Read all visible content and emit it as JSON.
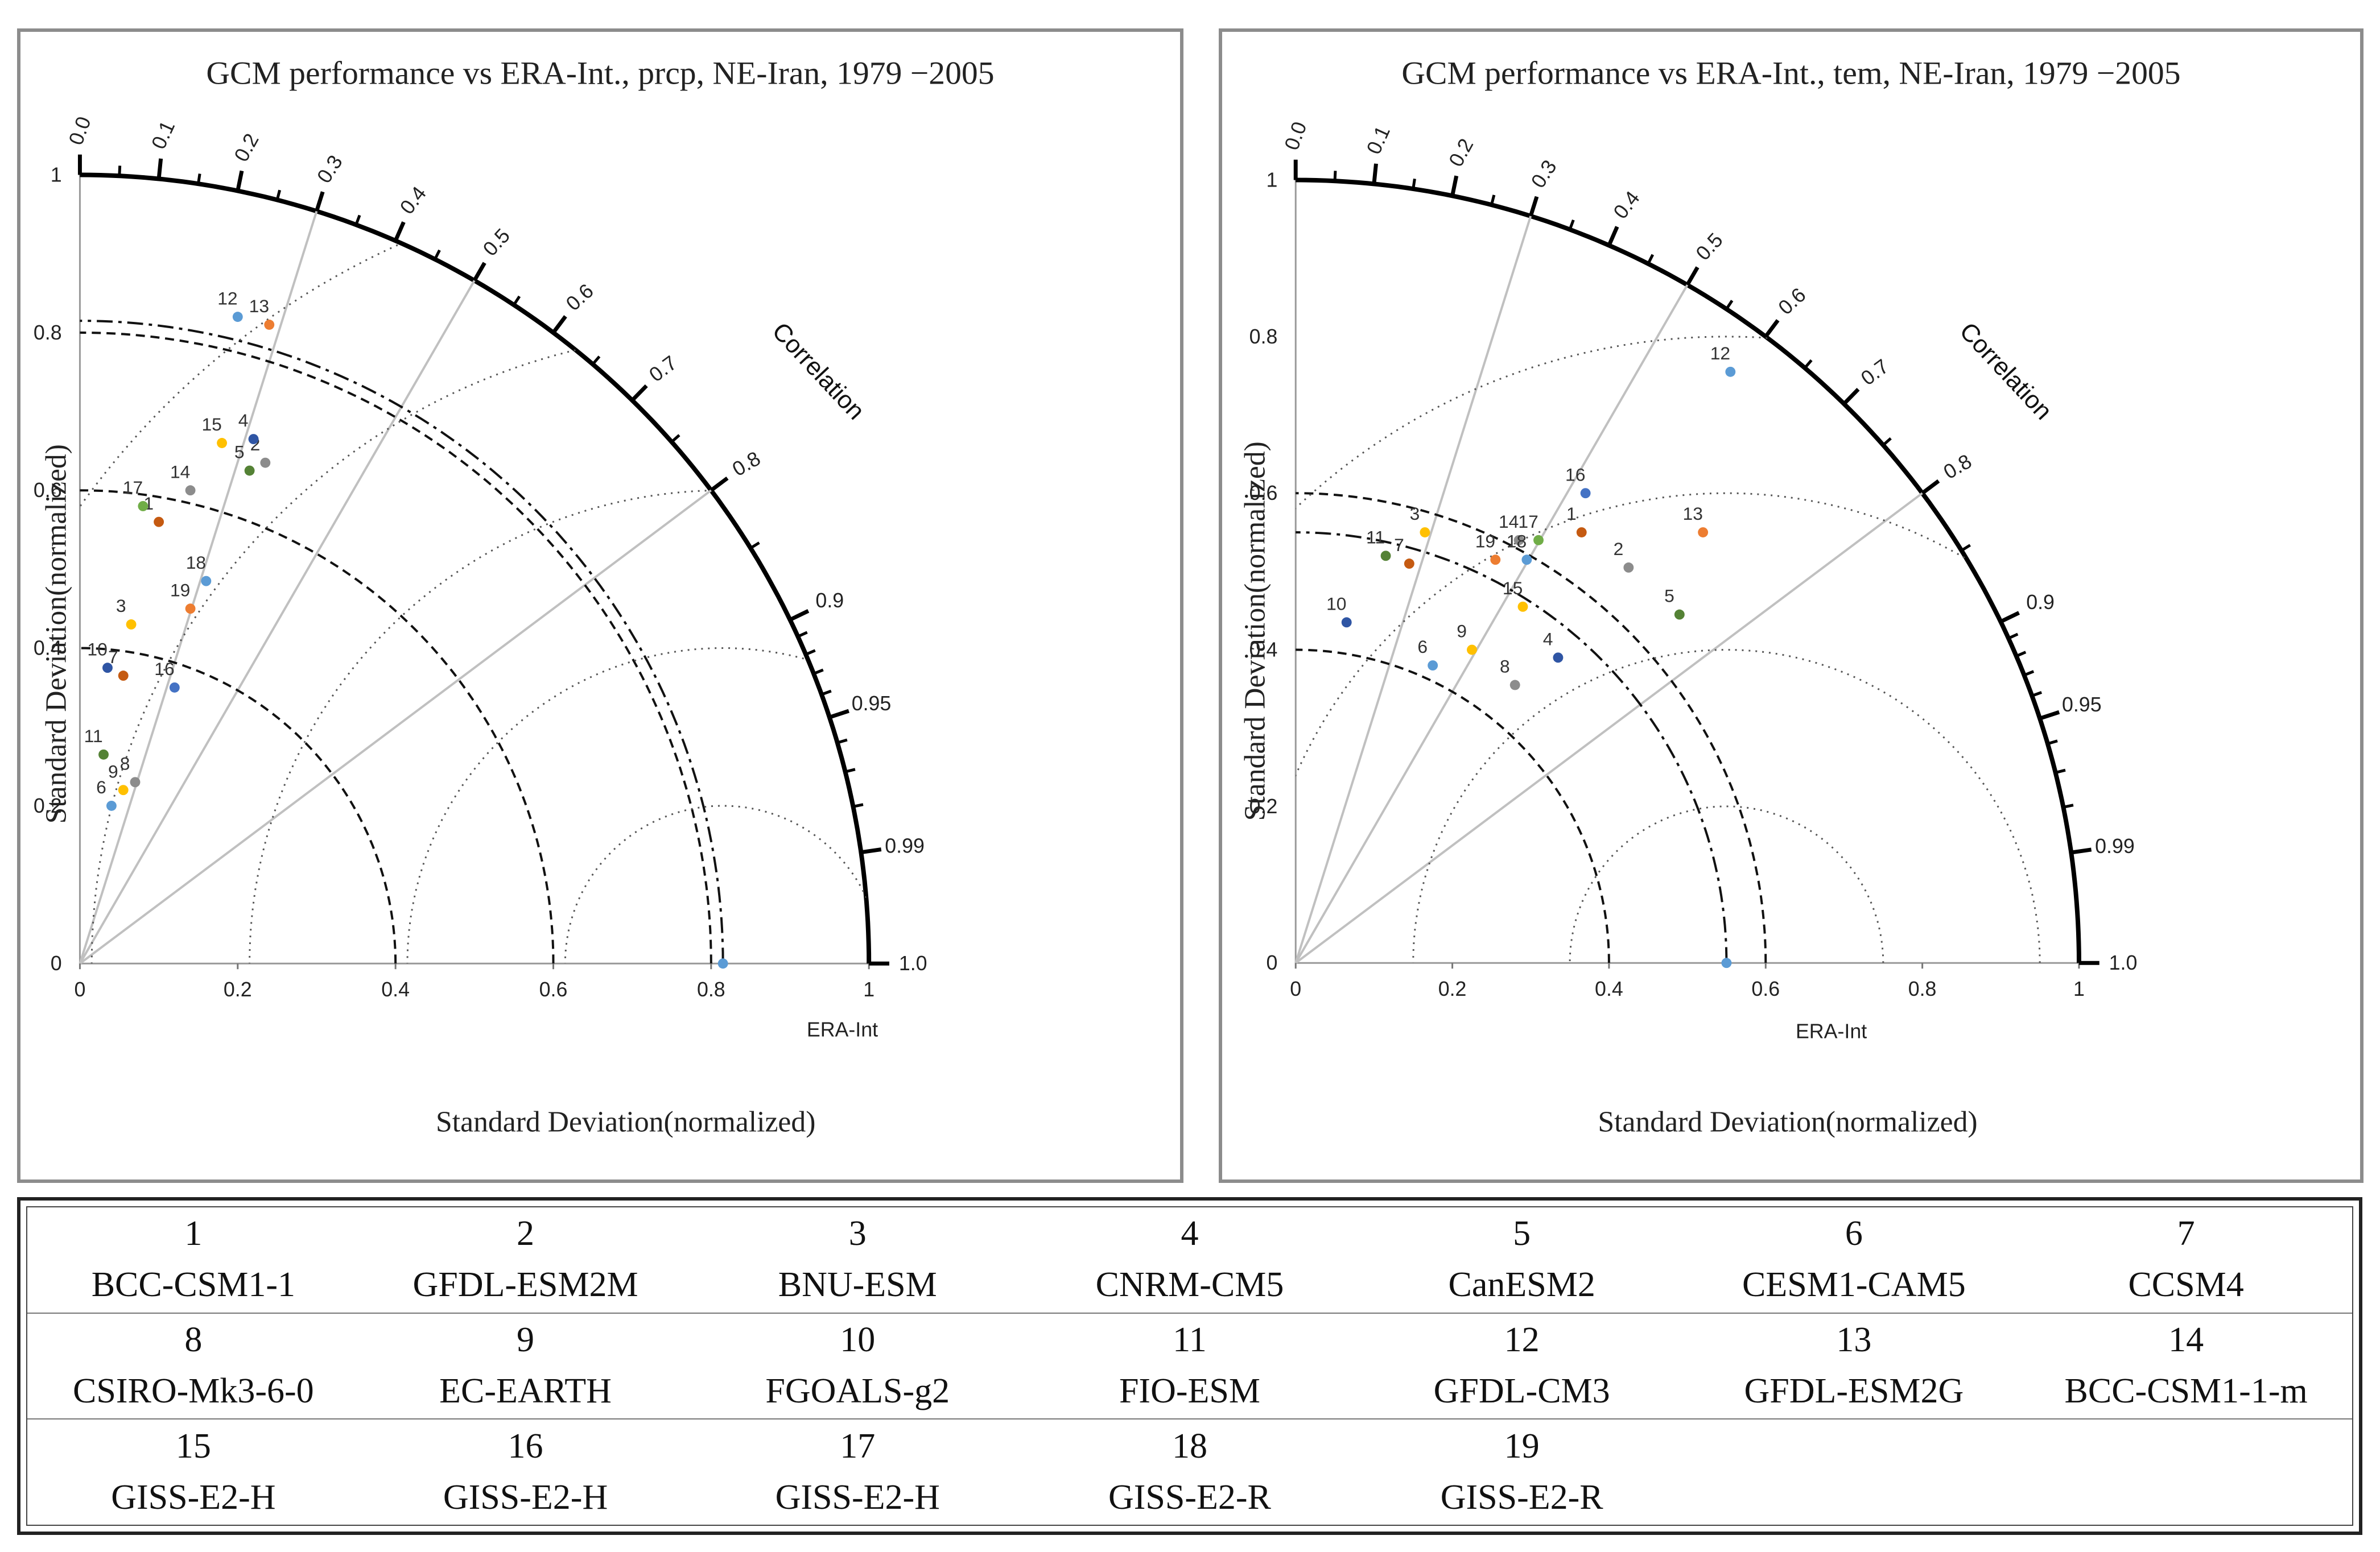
{
  "colors": {
    "blue": "#5b9bd5",
    "orange": "#ed7d31",
    "gray": "#8c8c8c",
    "yellow": "#ffc000",
    "navy": "#4472c4",
    "green": "#70ad47",
    "darkblue": "#2f55a4",
    "brown": "#c55a11",
    "olive": "#548235",
    "darkgray": "#7f7f7f"
  },
  "charts": [
    {
      "id": "prcp",
      "title": "GCM performance vs ERA-Int., prcp, NE-Iran, 1979 −2005",
      "xlabel": "Standard Deviation(normalized)",
      "ylabel": "Standard Deviation(normalized)",
      "corr_axis_label": "Correlation",
      "x_ticks": [
        "0",
        "0.2",
        "0.4",
        "0.6",
        "0.8",
        "1"
      ],
      "y_ticks": [
        "0",
        "0.2",
        "0.4",
        "0.6",
        "0.8",
        "1"
      ],
      "corr_ticks": [
        "0.0",
        "0.1",
        "0.2",
        "0.3",
        "0.4",
        "0.5",
        "0.6",
        "0.7",
        "0.8",
        "0.9",
        "0.95",
        "0.99",
        "1.0"
      ],
      "ref_label": "ERA-Int",
      "ref_std": 0.815,
      "chart_data": {
        "type": "scatter",
        "coordinate_system": "taylor-diagram",
        "max_std": 1.0,
        "reference": {
          "name": "ERA-Int",
          "x": 0.815,
          "y": 0,
          "color": "#5b9bd5"
        },
        "std_arcs": [
          0.4,
          0.6,
          0.8
        ],
        "ref_std_arc": 0.815,
        "rms_arcs": [
          0.2,
          0.4,
          0.6,
          0.8,
          1.0
        ],
        "corr_lines": [
          0.3,
          0.5,
          0.8
        ],
        "points": [
          {
            "label": "1",
            "x": 0.1,
            "y": 0.56,
            "color": "#c55a11"
          },
          {
            "label": "2",
            "x": 0.235,
            "y": 0.635,
            "color": "#8c8c8c"
          },
          {
            "label": "3",
            "x": 0.065,
            "y": 0.43,
            "color": "#ffc000"
          },
          {
            "label": "4",
            "x": 0.22,
            "y": 0.665,
            "color": "#2f55a4"
          },
          {
            "label": "5",
            "x": 0.215,
            "y": 0.625,
            "color": "#548235"
          },
          {
            "label": "6",
            "x": 0.04,
            "y": 0.2,
            "color": "#5b9bd5"
          },
          {
            "label": "7",
            "x": 0.055,
            "y": 0.365,
            "color": "#c55a11"
          },
          {
            "label": "8",
            "x": 0.07,
            "y": 0.23,
            "color": "#8c8c8c"
          },
          {
            "label": "9",
            "x": 0.055,
            "y": 0.22,
            "color": "#ffc000"
          },
          {
            "label": "10",
            "x": 0.035,
            "y": 0.375,
            "color": "#2f55a4"
          },
          {
            "label": "11",
            "x": 0.03,
            "y": 0.265,
            "color": "#548235"
          },
          {
            "label": "12",
            "x": 0.2,
            "y": 0.82,
            "color": "#5b9bd5"
          },
          {
            "label": "13",
            "x": 0.24,
            "y": 0.81,
            "color": "#ed7d31"
          },
          {
            "label": "14",
            "x": 0.14,
            "y": 0.6,
            "color": "#8c8c8c"
          },
          {
            "label": "15",
            "x": 0.18,
            "y": 0.66,
            "color": "#ffc000"
          },
          {
            "label": "16",
            "x": 0.12,
            "y": 0.35,
            "color": "#4472c4"
          },
          {
            "label": "17",
            "x": 0.08,
            "y": 0.58,
            "color": "#70ad47"
          },
          {
            "label": "18",
            "x": 0.16,
            "y": 0.485,
            "color": "#5b9bd5"
          },
          {
            "label": "19",
            "x": 0.14,
            "y": 0.45,
            "color": "#ed7d31"
          }
        ]
      }
    },
    {
      "id": "tem",
      "title": "GCM performance vs ERA-Int., tem, NE-Iran, 1979 −2005",
      "xlabel": "Standard Deviation(normalized)",
      "ylabel": "Standard Deviation(normalized)",
      "corr_axis_label": "Correlation",
      "x_ticks": [
        "0",
        "0.2",
        "0.4",
        "0.6",
        "0.8",
        "1"
      ],
      "y_ticks": [
        "0",
        "0.2",
        "0.4",
        "0.6",
        "0.8",
        "1"
      ],
      "corr_ticks": [
        "0.0",
        "0.1",
        "0.2",
        "0.3",
        "0.4",
        "0.5",
        "0.6",
        "0.7",
        "0.8",
        "0.9",
        "0.95",
        "0.99",
        "1.0"
      ],
      "ref_label": "ERA-Int",
      "ref_std": 0.55,
      "chart_data": {
        "type": "scatter",
        "coordinate_system": "taylor-diagram",
        "max_std": 1.0,
        "reference": {
          "name": "ERA-Int",
          "x": 0.55,
          "y": 0,
          "color": "#5b9bd5"
        },
        "std_arcs": [
          0.4,
          0.6
        ],
        "ref_std_arc": 0.55,
        "rms_arcs": [
          0.2,
          0.4,
          0.6,
          0.8
        ],
        "corr_lines": [
          0.3,
          0.5,
          0.8
        ],
        "points": [
          {
            "label": "1",
            "x": 0.365,
            "y": 0.55,
            "color": "#c55a11"
          },
          {
            "label": "2",
            "x": 0.425,
            "y": 0.505,
            "color": "#8c8c8c"
          },
          {
            "label": "3",
            "x": 0.165,
            "y": 0.55,
            "color": "#ffc000"
          },
          {
            "label": "4",
            "x": 0.335,
            "y": 0.39,
            "color": "#2f55a4"
          },
          {
            "label": "5",
            "x": 0.49,
            "y": 0.445,
            "color": "#548235"
          },
          {
            "label": "6",
            "x": 0.175,
            "y": 0.38,
            "color": "#5b9bd5"
          },
          {
            "label": "7",
            "x": 0.145,
            "y": 0.51,
            "color": "#c55a11"
          },
          {
            "label": "8",
            "x": 0.28,
            "y": 0.355,
            "color": "#8c8c8c"
          },
          {
            "label": "9",
            "x": 0.225,
            "y": 0.4,
            "color": "#ffc000"
          },
          {
            "label": "10",
            "x": 0.065,
            "y": 0.435,
            "color": "#2f55a4"
          },
          {
            "label": "11",
            "x": 0.115,
            "y": 0.52,
            "color": "#548235"
          },
          {
            "label": "12",
            "x": 0.555,
            "y": 0.755,
            "color": "#5b9bd5"
          },
          {
            "label": "13",
            "x": 0.52,
            "y": 0.55,
            "color": "#ed7d31"
          },
          {
            "label": "14",
            "x": 0.285,
            "y": 0.54,
            "color": "#8c8c8c"
          },
          {
            "label": "15",
            "x": 0.29,
            "y": 0.455,
            "color": "#ffc000"
          },
          {
            "label": "16",
            "x": 0.37,
            "y": 0.6,
            "color": "#4472c4"
          },
          {
            "label": "17",
            "x": 0.31,
            "y": 0.54,
            "color": "#70ad47"
          },
          {
            "label": "18",
            "x": 0.295,
            "y": 0.515,
            "color": "#5b9bd5"
          },
          {
            "label": "19",
            "x": 0.255,
            "y": 0.515,
            "color": "#ed7d31"
          }
        ]
      }
    }
  ],
  "legend": {
    "rows": [
      [
        {
          "num": "1",
          "name": "BCC-CSM1-1"
        },
        {
          "num": "2",
          "name": "GFDL-ESM2M"
        },
        {
          "num": "3",
          "name": "BNU-ESM"
        },
        {
          "num": "4",
          "name": "CNRM-CM5"
        },
        {
          "num": "5",
          "name": "CanESM2"
        },
        {
          "num": "6",
          "name": "CESM1-CAM5"
        },
        {
          "num": "7",
          "name": "CCSM4"
        }
      ],
      [
        {
          "num": "8",
          "name": "CSIRO-Mk3-6-0"
        },
        {
          "num": "9",
          "name": "EC-EARTH"
        },
        {
          "num": "10",
          "name": "FGOALS-g2"
        },
        {
          "num": "11",
          "name": "FIO-ESM"
        },
        {
          "num": "12",
          "name": "GFDL-CM3"
        },
        {
          "num": "13",
          "name": "GFDL-ESM2G"
        },
        {
          "num": "14",
          "name": "BCC-CSM1-1-m"
        }
      ],
      [
        {
          "num": "15",
          "name": "GISS-E2-H"
        },
        {
          "num": "16",
          "name": "GISS-E2-H"
        },
        {
          "num": "17",
          "name": "GISS-E2-H"
        },
        {
          "num": "18",
          "name": "GISS-E2-R"
        },
        {
          "num": "19",
          "name": "GISS-E2-R"
        },
        {
          "num": "",
          "name": ""
        },
        {
          "num": "",
          "name": ""
        }
      ]
    ]
  }
}
